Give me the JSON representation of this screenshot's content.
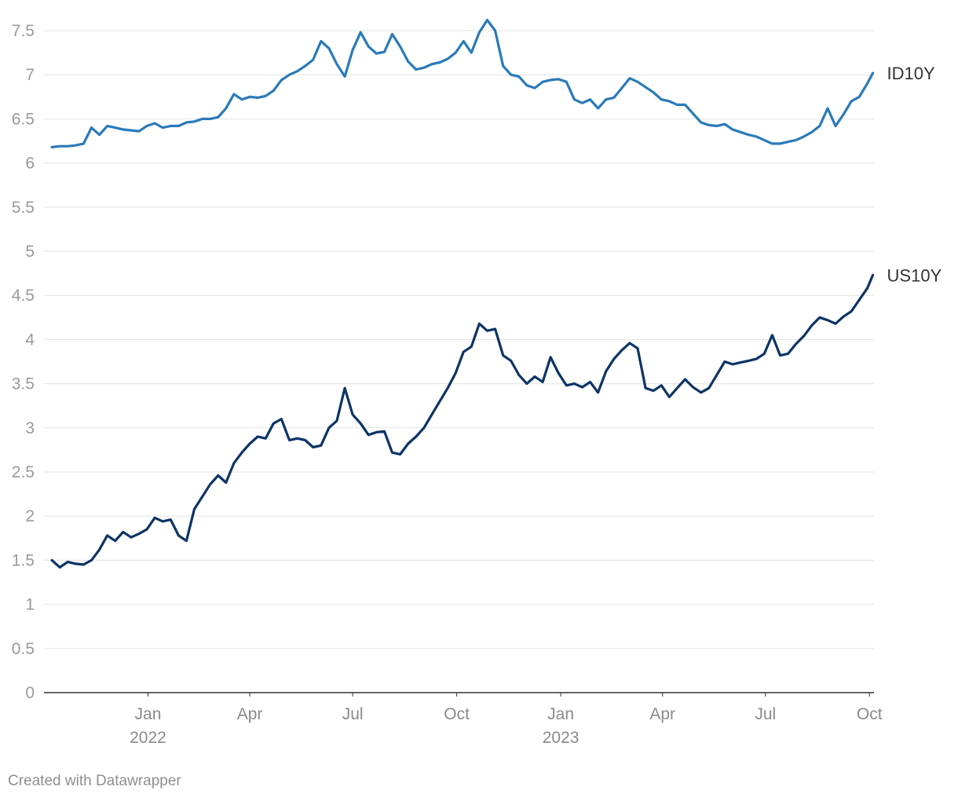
{
  "footer": {
    "credit": "Created with Datawrapper"
  },
  "chart_data": {
    "type": "line",
    "title": "",
    "xlabel": "",
    "ylabel": "",
    "ylim": [
      0,
      7.5
    ],
    "yticks": [
      "0",
      "0.5",
      "1",
      "1.5",
      "2",
      "2.5",
      "3",
      "3.5",
      "4",
      "4.5",
      "5",
      "5.5",
      "6",
      "6.5",
      "7",
      "7.5"
    ],
    "xlim": [
      "2021-10-01",
      "2023-10-05"
    ],
    "xticks": [
      {
        "date": "2022-01-01",
        "label": "Jan",
        "year": "2022"
      },
      {
        "date": "2022-04-01",
        "label": "Apr",
        "year": ""
      },
      {
        "date": "2022-07-01",
        "label": "Jul",
        "year": ""
      },
      {
        "date": "2022-10-01",
        "label": "Oct",
        "year": ""
      },
      {
        "date": "2023-01-01",
        "label": "Jan",
        "year": "2023"
      },
      {
        "date": "2023-04-01",
        "label": "Apr",
        "year": ""
      },
      {
        "date": "2023-07-01",
        "label": "Jul",
        "year": ""
      },
      {
        "date": "2023-10-01",
        "label": "Oct",
        "year": ""
      }
    ],
    "grid": true,
    "series": [
      {
        "name": "ID10Y",
        "color": "#2a7ab8",
        "points": [
          [
            "2021-10-08",
            6.18
          ],
          [
            "2021-10-15",
            6.19
          ],
          [
            "2021-10-22",
            6.19
          ],
          [
            "2021-10-29",
            6.2
          ],
          [
            "2021-11-05",
            6.22
          ],
          [
            "2021-11-12",
            6.4
          ],
          [
            "2021-11-19",
            6.32
          ],
          [
            "2021-11-26",
            6.42
          ],
          [
            "2021-12-03",
            6.4
          ],
          [
            "2021-12-10",
            6.38
          ],
          [
            "2021-12-17",
            6.37
          ],
          [
            "2021-12-24",
            6.36
          ],
          [
            "2021-12-31",
            6.42
          ],
          [
            "2022-01-07",
            6.45
          ],
          [
            "2022-01-14",
            6.4
          ],
          [
            "2022-01-21",
            6.42
          ],
          [
            "2022-01-28",
            6.42
          ],
          [
            "2022-02-04",
            6.46
          ],
          [
            "2022-02-11",
            6.47
          ],
          [
            "2022-02-18",
            6.5
          ],
          [
            "2022-02-25",
            6.5
          ],
          [
            "2022-03-04",
            6.52
          ],
          [
            "2022-03-11",
            6.62
          ],
          [
            "2022-03-18",
            6.78
          ],
          [
            "2022-03-25",
            6.72
          ],
          [
            "2022-04-01",
            6.75
          ],
          [
            "2022-04-08",
            6.74
          ],
          [
            "2022-04-15",
            6.76
          ],
          [
            "2022-04-22",
            6.82
          ],
          [
            "2022-04-29",
            6.94
          ],
          [
            "2022-05-06",
            7.0
          ],
          [
            "2022-05-13",
            7.04
          ],
          [
            "2022-05-20",
            7.1
          ],
          [
            "2022-05-27",
            7.17
          ],
          [
            "2022-06-03",
            7.38
          ],
          [
            "2022-06-10",
            7.3
          ],
          [
            "2022-06-17",
            7.12
          ],
          [
            "2022-06-24",
            6.98
          ],
          [
            "2022-07-01",
            7.28
          ],
          [
            "2022-07-08",
            7.48
          ],
          [
            "2022-07-15",
            7.32
          ],
          [
            "2022-07-22",
            7.24
          ],
          [
            "2022-07-29",
            7.26
          ],
          [
            "2022-08-05",
            7.46
          ],
          [
            "2022-08-12",
            7.32
          ],
          [
            "2022-08-19",
            7.15
          ],
          [
            "2022-08-26",
            7.06
          ],
          [
            "2022-09-02",
            7.08
          ],
          [
            "2022-09-09",
            7.12
          ],
          [
            "2022-09-16",
            7.14
          ],
          [
            "2022-09-23",
            7.18
          ],
          [
            "2022-09-30",
            7.25
          ],
          [
            "2022-10-07",
            7.38
          ],
          [
            "2022-10-14",
            7.25
          ],
          [
            "2022-10-21",
            7.48
          ],
          [
            "2022-10-28",
            7.62
          ],
          [
            "2022-11-04",
            7.5
          ],
          [
            "2022-11-11",
            7.1
          ],
          [
            "2022-11-18",
            7.0
          ],
          [
            "2022-11-25",
            6.98
          ],
          [
            "2022-12-02",
            6.88
          ],
          [
            "2022-12-09",
            6.85
          ],
          [
            "2022-12-16",
            6.92
          ],
          [
            "2022-12-23",
            6.94
          ],
          [
            "2022-12-30",
            6.95
          ],
          [
            "2023-01-06",
            6.92
          ],
          [
            "2023-01-13",
            6.72
          ],
          [
            "2023-01-20",
            6.68
          ],
          [
            "2023-01-27",
            6.72
          ],
          [
            "2023-02-03",
            6.62
          ],
          [
            "2023-02-10",
            6.72
          ],
          [
            "2023-02-17",
            6.74
          ],
          [
            "2023-02-24",
            6.85
          ],
          [
            "2023-03-03",
            6.96
          ],
          [
            "2023-03-10",
            6.92
          ],
          [
            "2023-03-17",
            6.86
          ],
          [
            "2023-03-24",
            6.8
          ],
          [
            "2023-03-31",
            6.72
          ],
          [
            "2023-04-07",
            6.7
          ],
          [
            "2023-04-14",
            6.66
          ],
          [
            "2023-04-21",
            6.66
          ],
          [
            "2023-04-28",
            6.56
          ],
          [
            "2023-05-05",
            6.46
          ],
          [
            "2023-05-12",
            6.43
          ],
          [
            "2023-05-19",
            6.42
          ],
          [
            "2023-05-26",
            6.44
          ],
          [
            "2023-06-02",
            6.38
          ],
          [
            "2023-06-09",
            6.35
          ],
          [
            "2023-06-16",
            6.32
          ],
          [
            "2023-06-23",
            6.3
          ],
          [
            "2023-06-30",
            6.26
          ],
          [
            "2023-07-07",
            6.22
          ],
          [
            "2023-07-14",
            6.22
          ],
          [
            "2023-07-21",
            6.24
          ],
          [
            "2023-07-28",
            6.26
          ],
          [
            "2023-08-04",
            6.3
          ],
          [
            "2023-08-11",
            6.35
          ],
          [
            "2023-08-18",
            6.42
          ],
          [
            "2023-08-25",
            6.62
          ],
          [
            "2023-09-01",
            6.42
          ],
          [
            "2023-09-08",
            6.55
          ],
          [
            "2023-09-15",
            6.7
          ],
          [
            "2023-09-22",
            6.75
          ],
          [
            "2023-09-29",
            6.9
          ],
          [
            "2023-10-04",
            7.02
          ]
        ]
      },
      {
        "name": "US10Y",
        "color": "#0d3466",
        "points": [
          [
            "2021-10-08",
            1.5
          ],
          [
            "2021-10-15",
            1.42
          ],
          [
            "2021-10-22",
            1.48
          ],
          [
            "2021-10-29",
            1.46
          ],
          [
            "2021-11-05",
            1.45
          ],
          [
            "2021-11-12",
            1.5
          ],
          [
            "2021-11-19",
            1.62
          ],
          [
            "2021-11-26",
            1.78
          ],
          [
            "2021-12-03",
            1.72
          ],
          [
            "2021-12-10",
            1.82
          ],
          [
            "2021-12-17",
            1.76
          ],
          [
            "2021-12-24",
            1.8
          ],
          [
            "2021-12-31",
            1.85
          ],
          [
            "2022-01-07",
            1.98
          ],
          [
            "2022-01-14",
            1.94
          ],
          [
            "2022-01-21",
            1.96
          ],
          [
            "2022-01-28",
            1.78
          ],
          [
            "2022-02-04",
            1.72
          ],
          [
            "2022-02-11",
            2.08
          ],
          [
            "2022-02-18",
            2.22
          ],
          [
            "2022-02-25",
            2.36
          ],
          [
            "2022-03-04",
            2.46
          ],
          [
            "2022-03-11",
            2.38
          ],
          [
            "2022-03-18",
            2.6
          ],
          [
            "2022-03-25",
            2.72
          ],
          [
            "2022-04-01",
            2.82
          ],
          [
            "2022-04-08",
            2.9
          ],
          [
            "2022-04-15",
            2.88
          ],
          [
            "2022-04-22",
            3.05
          ],
          [
            "2022-04-29",
            3.1
          ],
          [
            "2022-05-06",
            2.86
          ],
          [
            "2022-05-13",
            2.88
          ],
          [
            "2022-05-20",
            2.86
          ],
          [
            "2022-05-27",
            2.78
          ],
          [
            "2022-06-03",
            2.8
          ],
          [
            "2022-06-10",
            3.0
          ],
          [
            "2022-06-17",
            3.08
          ],
          [
            "2022-06-24",
            3.45
          ],
          [
            "2022-07-01",
            3.15
          ],
          [
            "2022-07-08",
            3.05
          ],
          [
            "2022-07-15",
            2.92
          ],
          [
            "2022-07-22",
            2.95
          ],
          [
            "2022-07-29",
            2.96
          ],
          [
            "2022-08-05",
            2.72
          ],
          [
            "2022-08-12",
            2.7
          ],
          [
            "2022-08-19",
            2.82
          ],
          [
            "2022-08-26",
            2.9
          ],
          [
            "2022-09-02",
            3.0
          ],
          [
            "2022-09-09",
            3.15
          ],
          [
            "2022-09-16",
            3.3
          ],
          [
            "2022-09-23",
            3.45
          ],
          [
            "2022-09-30",
            3.62
          ],
          [
            "2022-10-07",
            3.86
          ],
          [
            "2022-10-14",
            3.92
          ],
          [
            "2022-10-21",
            4.18
          ],
          [
            "2022-10-28",
            4.1
          ],
          [
            "2022-11-04",
            4.12
          ],
          [
            "2022-11-11",
            3.82
          ],
          [
            "2022-11-18",
            3.76
          ],
          [
            "2022-11-25",
            3.6
          ],
          [
            "2022-12-02",
            3.5
          ],
          [
            "2022-12-09",
            3.58
          ],
          [
            "2022-12-16",
            3.52
          ],
          [
            "2022-12-23",
            3.8
          ],
          [
            "2022-12-30",
            3.62
          ],
          [
            "2023-01-06",
            3.48
          ],
          [
            "2023-01-13",
            3.5
          ],
          [
            "2023-01-20",
            3.46
          ],
          [
            "2023-01-27",
            3.52
          ],
          [
            "2023-02-03",
            3.4
          ],
          [
            "2023-02-10",
            3.64
          ],
          [
            "2023-02-17",
            3.78
          ],
          [
            "2023-02-24",
            3.88
          ],
          [
            "2023-03-03",
            3.96
          ],
          [
            "2023-03-10",
            3.9
          ],
          [
            "2023-03-17",
            3.45
          ],
          [
            "2023-03-24",
            3.42
          ],
          [
            "2023-03-31",
            3.48
          ],
          [
            "2023-04-07",
            3.35
          ],
          [
            "2023-04-14",
            3.45
          ],
          [
            "2023-04-21",
            3.55
          ],
          [
            "2023-04-28",
            3.46
          ],
          [
            "2023-05-05",
            3.4
          ],
          [
            "2023-05-12",
            3.45
          ],
          [
            "2023-05-19",
            3.6
          ],
          [
            "2023-05-26",
            3.75
          ],
          [
            "2023-06-02",
            3.72
          ],
          [
            "2023-06-09",
            3.74
          ],
          [
            "2023-06-16",
            3.76
          ],
          [
            "2023-06-23",
            3.78
          ],
          [
            "2023-06-30",
            3.84
          ],
          [
            "2023-07-07",
            4.05
          ],
          [
            "2023-07-14",
            3.82
          ],
          [
            "2023-07-21",
            3.84
          ],
          [
            "2023-07-28",
            3.95
          ],
          [
            "2023-08-04",
            4.04
          ],
          [
            "2023-08-11",
            4.16
          ],
          [
            "2023-08-18",
            4.25
          ],
          [
            "2023-08-25",
            4.22
          ],
          [
            "2023-09-01",
            4.18
          ],
          [
            "2023-09-08",
            4.26
          ],
          [
            "2023-09-15",
            4.32
          ],
          [
            "2023-09-22",
            4.45
          ],
          [
            "2023-09-29",
            4.58
          ],
          [
            "2023-10-04",
            4.73
          ]
        ]
      }
    ]
  }
}
